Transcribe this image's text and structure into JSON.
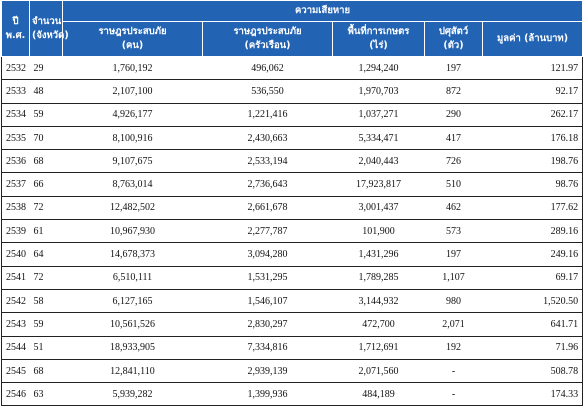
{
  "header": {
    "year": [
      "ปี",
      "พ.ศ."
    ],
    "count": [
      "จำนวน",
      "(จังหวัด)"
    ],
    "damage": "ความเสียหาย",
    "columns": [
      [
        "ราษฎรประสบภัย",
        "(คน)"
      ],
      [
        "ราษฎรประสบภัย",
        "(ครัวเรือน)"
      ],
      [
        "พื้นที่การเกษตร",
        "(ไร่)"
      ],
      [
        "ปศุสัตว์",
        "(ตัว)"
      ],
      [
        "มูลค่า (ล้านบาท)"
      ]
    ]
  },
  "table": {
    "rows": [
      [
        "2532",
        "29",
        "1,760,192",
        "496,062",
        "1,294,240",
        "197",
        "121.97"
      ],
      [
        "2533",
        "48",
        "2,107,100",
        "536,550",
        "1,970,703",
        "872",
        "92.17"
      ],
      [
        "2534",
        "59",
        "4,926,177",
        "1,221,416",
        "1,037,271",
        "290",
        "262.17"
      ],
      [
        "2535",
        "70",
        "8,100,916",
        "2,430,663",
        "5,334,471",
        "417",
        "176.18"
      ],
      [
        "2536",
        "68",
        "9,107,675",
        "2,533,194",
        "2,040,443",
        "726",
        "198.76"
      ],
      [
        "2537",
        "66",
        "8,763,014",
        "2,736,643",
        "17,923,817",
        "510",
        "98.76"
      ],
      [
        "2538",
        "72",
        "12,482,502",
        "2,661,678",
        "3,001,437",
        "462",
        "177.62"
      ],
      [
        "2539",
        "61",
        "10,967,930",
        "2,277,787",
        "101,900",
        "573",
        "289.16"
      ],
      [
        "2540",
        "64",
        "14,678,373",
        "3,094,280",
        "1,431,296",
        "197",
        "249.16"
      ],
      [
        "2541",
        "72",
        "6,510,111",
        "1,531,295",
        "1,789,285",
        "1,107",
        "69.17"
      ],
      [
        "2542",
        "58",
        "6,127,165",
        "1,546,107",
        "3,144,932",
        "980",
        "1,520.50"
      ],
      [
        "2543",
        "59",
        "10,561,526",
        "2,830,297",
        "472,700",
        "2,071",
        "641.71"
      ],
      [
        "2544",
        "51",
        "18,933,905",
        "7,334,816",
        "1,712,691",
        "192",
        "71.96"
      ],
      [
        "2545",
        "68",
        "12,841,110",
        "2,939,139",
        "2,071,560",
        "-",
        "508.78"
      ],
      [
        "2546",
        "63",
        "5,939,282",
        "1,399,936",
        "484,189",
        "-",
        "174.33"
      ]
    ]
  }
}
